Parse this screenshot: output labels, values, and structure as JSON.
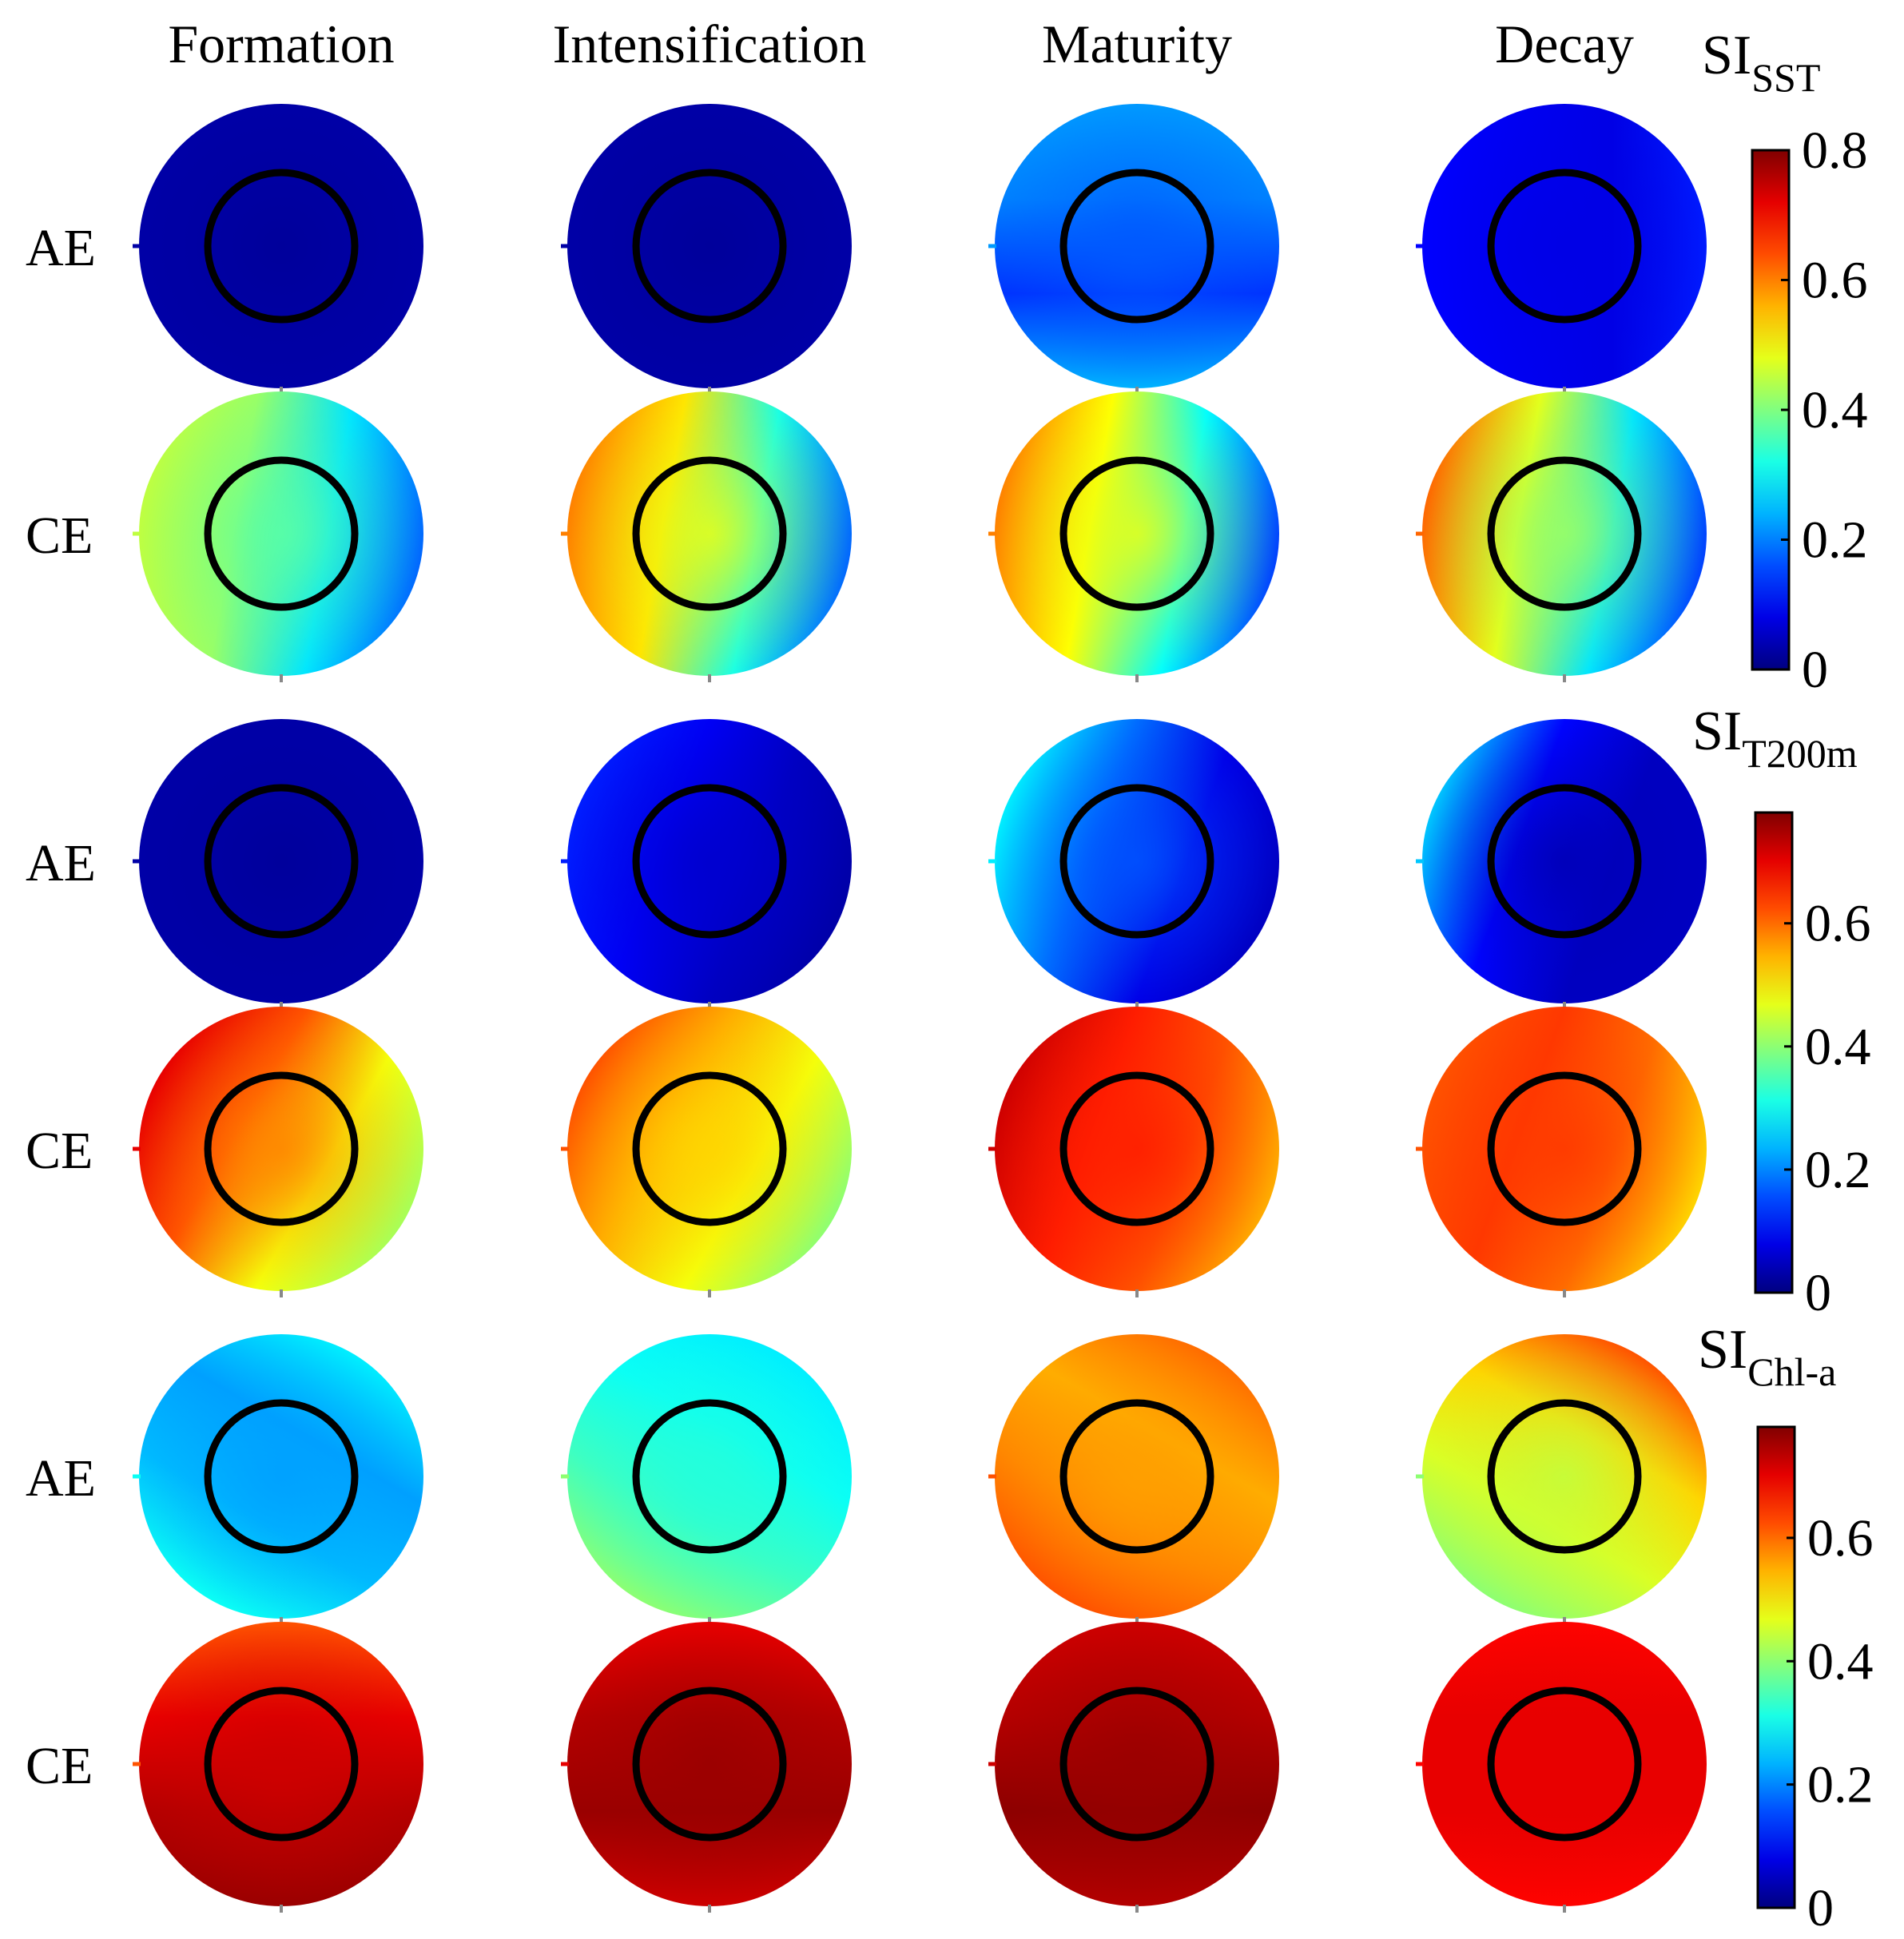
{
  "chart_data": {
    "type": "heatmap",
    "description_columns": [
      "Formation",
      "Intensification",
      "Maturity",
      "Decay"
    ],
    "columns": [
      "Formation",
      "Intensification",
      "Maturity",
      "Decay"
    ],
    "row_labels": [
      "AE",
      "CE"
    ],
    "groups": [
      {
        "id": "sst",
        "colorbar": {
          "title_main": "SI",
          "title_sub": "SST",
          "ticks": [
            "0",
            "0.2",
            "0.4",
            "0.6",
            "0.8"
          ],
          "range": [
            0,
            0.8
          ]
        },
        "panels": [
          {
            "row": "AE",
            "column": "Formation",
            "center": 0.02,
            "gradient": [
              0.03,
              0.03,
              0.03,
              0.03
            ],
            "angle": 0
          },
          {
            "row": "AE",
            "column": "Intensification",
            "center": 0.02,
            "gradient": [
              0.03,
              0.03,
              0.03,
              0.03
            ],
            "angle": 0
          },
          {
            "row": "AE",
            "column": "Maturity",
            "center": 0.17,
            "gradient": [
              0.22,
              0.2,
              0.14,
              0.24
            ],
            "angle": 90
          },
          {
            "row": "AE",
            "column": "Decay",
            "center": 0.08,
            "gradient": [
              0.1,
              0.09,
              0.08,
              0.12
            ],
            "angle": 0
          },
          {
            "row": "CE",
            "column": "Formation",
            "center": 0.37,
            "gradient": [
              0.45,
              0.42,
              0.28,
              0.18
            ],
            "angle": 10
          },
          {
            "row": "CE",
            "column": "Intensification",
            "center": 0.48,
            "gradient": [
              0.6,
              0.52,
              0.32,
              0.18
            ],
            "angle": 10
          },
          {
            "row": "CE",
            "column": "Maturity",
            "center": 0.48,
            "gradient": [
              0.6,
              0.5,
              0.3,
              0.15
            ],
            "angle": 10
          },
          {
            "row": "CE",
            "column": "Decay",
            "center": 0.42,
            "gradient": [
              0.62,
              0.48,
              0.28,
              0.15
            ],
            "angle": 10
          }
        ]
      },
      {
        "id": "t200m",
        "colorbar": {
          "title_main": "SI",
          "title_sub": "T200m",
          "ticks": [
            "0",
            "0.2",
            "0.4",
            "0.6"
          ],
          "range": [
            0,
            0.78
          ]
        },
        "panels": [
          {
            "row": "AE",
            "column": "Formation",
            "center": 0.02,
            "gradient": [
              0.03,
              0.03,
              0.03,
              0.03
            ],
            "angle": 0
          },
          {
            "row": "AE",
            "column": "Intensification",
            "center": 0.06,
            "gradient": [
              0.12,
              0.09,
              0.05,
              0.03
            ],
            "angle": 20
          },
          {
            "row": "AE",
            "column": "Maturity",
            "center": 0.16,
            "gradient": [
              0.28,
              0.18,
              0.08,
              0.05
            ],
            "angle": 20
          },
          {
            "row": "AE",
            "column": "Decay",
            "center": 0.04,
            "gradient": [
              0.25,
              0.1,
              0.05,
              0.05
            ],
            "angle": 20
          },
          {
            "row": "CE",
            "column": "Formation",
            "center": 0.58,
            "gradient": [
              0.7,
              0.62,
              0.48,
              0.42
            ],
            "angle": 30
          },
          {
            "row": "CE",
            "column": "Intensification",
            "center": 0.52,
            "gradient": [
              0.62,
              0.55,
              0.48,
              0.4
            ],
            "angle": 30
          },
          {
            "row": "CE",
            "column": "Maturity",
            "center": 0.66,
            "gradient": [
              0.72,
              0.66,
              0.62,
              0.55
            ],
            "angle": 20
          },
          {
            "row": "CE",
            "column": "Decay",
            "center": 0.64,
            "gradient": [
              0.62,
              0.64,
              0.6,
              0.52
            ],
            "angle": 20
          }
        ]
      },
      {
        "id": "chla",
        "colorbar": {
          "title_main": "SI",
          "title_sub": "Chl-a",
          "ticks": [
            "0",
            "0.2",
            "0.4",
            "0.6"
          ],
          "range": [
            0,
            0.78
          ]
        },
        "panels": [
          {
            "row": "AE",
            "column": "Formation",
            "center": 0.22,
            "gradient": [
              0.3,
              0.24,
              0.22,
              0.28
            ],
            "angle": 300
          },
          {
            "row": "AE",
            "column": "Intensification",
            "center": 0.32,
            "gradient": [
              0.4,
              0.34,
              0.3,
              0.28
            ],
            "angle": 300
          },
          {
            "row": "AE",
            "column": "Maturity",
            "center": 0.56,
            "gradient": [
              0.62,
              0.58,
              0.55,
              0.6
            ],
            "angle": 300
          },
          {
            "row": "AE",
            "column": "Decay",
            "center": 0.44,
            "gradient": [
              0.4,
              0.46,
              0.52,
              0.62
            ],
            "angle": 300
          },
          {
            "row": "CE",
            "column": "Formation",
            "center": 0.72,
            "gradient": [
              0.62,
              0.7,
              0.74,
              0.76
            ],
            "angle": 90
          },
          {
            "row": "CE",
            "column": "Intensification",
            "center": 0.76,
            "gradient": [
              0.7,
              0.74,
              0.76,
              0.72
            ],
            "angle": 90
          },
          {
            "row": "CE",
            "column": "Maturity",
            "center": 0.76,
            "gradient": [
              0.72,
              0.74,
              0.77,
              0.74
            ],
            "angle": 90
          },
          {
            "row": "CE",
            "column": "Decay",
            "center": 0.7,
            "gradient": [
              0.68,
              0.7,
              0.7,
              0.68
            ],
            "angle": 90
          }
        ]
      }
    ],
    "colormap": "jet",
    "inner_circle": "eddy core outline (black ring)"
  }
}
